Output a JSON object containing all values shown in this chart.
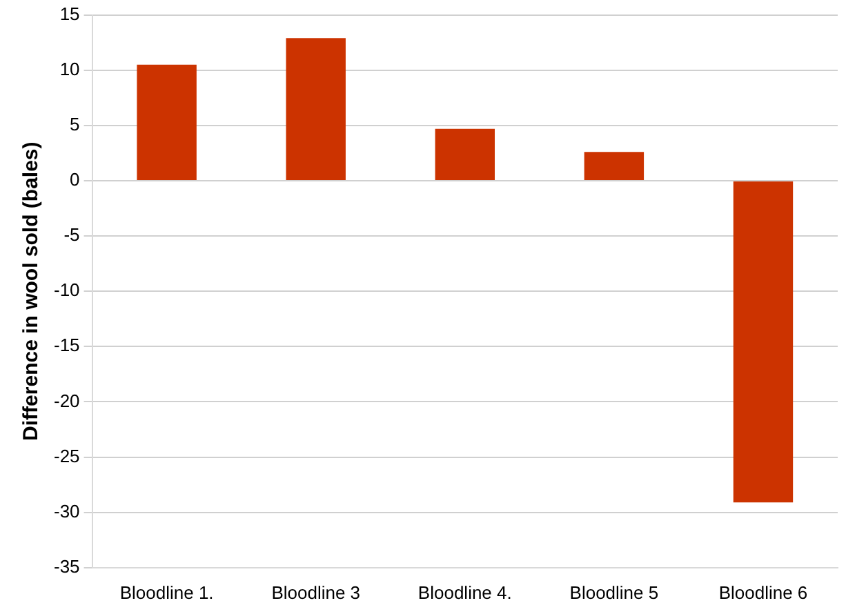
{
  "chart_data": {
    "type": "bar",
    "ylabel": "Difference in wool sold (bales)",
    "categories": [
      "Bloodline 1.",
      "Bloodline 3",
      "Bloodline 4.",
      "Bloodline 5",
      "Bloodline 6"
    ],
    "values": [
      10.5,
      12.9,
      4.7,
      2.6,
      -29.1
    ],
    "color": "#cc3300",
    "ylim": [
      -35,
      15
    ],
    "yticks": [
      -35,
      -30,
      -25,
      -20,
      -15,
      -10,
      -5,
      0,
      5,
      10,
      15
    ],
    "grid": "y"
  }
}
